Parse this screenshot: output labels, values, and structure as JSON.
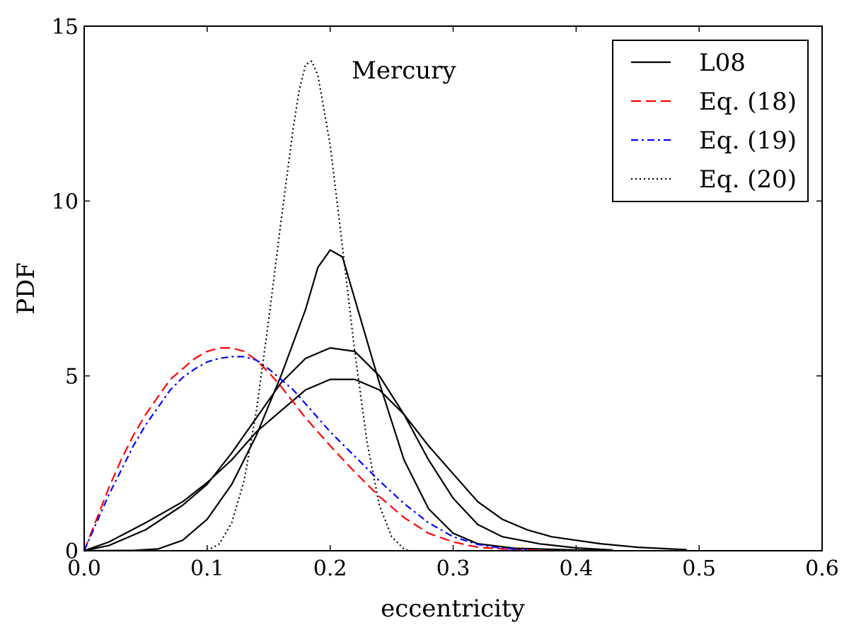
{
  "chart_data": {
    "type": "line",
    "xlabel": "eccentricity",
    "ylabel": "PDF",
    "xlim": [
      0.0,
      0.6
    ],
    "ylim": [
      0,
      15
    ],
    "x_ticks": [
      "0.0",
      "0.1",
      "0.2",
      "0.3",
      "0.4",
      "0.5",
      "0.6"
    ],
    "y_ticks": [
      "0",
      "5",
      "10",
      "15"
    ],
    "grid": false,
    "annotation": "Mercury",
    "legend_position": "top-right",
    "series": [
      {
        "name": "L08",
        "color": "#000000",
        "dash": "solid",
        "points": [
          [
            0.0,
            0.0
          ],
          [
            0.04,
            0.01
          ],
          [
            0.06,
            0.05
          ],
          [
            0.08,
            0.3
          ],
          [
            0.1,
            0.9
          ],
          [
            0.12,
            1.9
          ],
          [
            0.14,
            3.3
          ],
          [
            0.16,
            5.0
          ],
          [
            0.18,
            6.9
          ],
          [
            0.19,
            8.1
          ],
          [
            0.2,
            8.6
          ],
          [
            0.21,
            8.4
          ],
          [
            0.22,
            7.2
          ],
          [
            0.24,
            4.8
          ],
          [
            0.26,
            2.6
          ],
          [
            0.28,
            1.2
          ],
          [
            0.3,
            0.5
          ],
          [
            0.32,
            0.2
          ],
          [
            0.35,
            0.07
          ],
          [
            0.4,
            0.02
          ],
          [
            0.43,
            0.0
          ]
        ]
      },
      {
        "name": "",
        "color": "#000000",
        "dash": "solid",
        "points": [
          [
            0.0,
            0.0
          ],
          [
            0.02,
            0.15
          ],
          [
            0.05,
            0.6
          ],
          [
            0.08,
            1.3
          ],
          [
            0.1,
            1.9
          ],
          [
            0.12,
            2.8
          ],
          [
            0.14,
            3.8
          ],
          [
            0.16,
            4.8
          ],
          [
            0.18,
            5.5
          ],
          [
            0.2,
            5.8
          ],
          [
            0.22,
            5.7
          ],
          [
            0.24,
            5.0
          ],
          [
            0.26,
            3.9
          ],
          [
            0.28,
            2.6
          ],
          [
            0.3,
            1.5
          ],
          [
            0.32,
            0.75
          ],
          [
            0.34,
            0.4
          ],
          [
            0.37,
            0.2
          ],
          [
            0.4,
            0.08
          ],
          [
            0.43,
            0.02
          ]
        ]
      },
      {
        "name": "",
        "color": "#000000",
        "dash": "solid",
        "points": [
          [
            0.0,
            0.0
          ],
          [
            0.02,
            0.25
          ],
          [
            0.05,
            0.8
          ],
          [
            0.08,
            1.4
          ],
          [
            0.1,
            1.95
          ],
          [
            0.12,
            2.6
          ],
          [
            0.14,
            3.4
          ],
          [
            0.16,
            4.0
          ],
          [
            0.18,
            4.6
          ],
          [
            0.2,
            4.9
          ],
          [
            0.22,
            4.9
          ],
          [
            0.24,
            4.6
          ],
          [
            0.26,
            3.9
          ],
          [
            0.28,
            3.0
          ],
          [
            0.3,
            2.2
          ],
          [
            0.32,
            1.4
          ],
          [
            0.34,
            0.9
          ],
          [
            0.36,
            0.6
          ],
          [
            0.38,
            0.4
          ],
          [
            0.4,
            0.3
          ],
          [
            0.42,
            0.2
          ],
          [
            0.45,
            0.1
          ],
          [
            0.49,
            0.03
          ]
        ]
      },
      {
        "name": "Eq. (18)",
        "color": "#ff0000",
        "dash": "dashed",
        "points": [
          [
            0.0,
            0.0
          ],
          [
            0.01,
            0.9
          ],
          [
            0.02,
            1.8
          ],
          [
            0.03,
            2.6
          ],
          [
            0.04,
            3.3
          ],
          [
            0.05,
            3.9
          ],
          [
            0.06,
            4.4
          ],
          [
            0.07,
            4.9
          ],
          [
            0.08,
            5.2
          ],
          [
            0.09,
            5.5
          ],
          [
            0.1,
            5.7
          ],
          [
            0.11,
            5.8
          ],
          [
            0.12,
            5.8
          ],
          [
            0.13,
            5.7
          ],
          [
            0.14,
            5.45
          ],
          [
            0.15,
            5.1
          ],
          [
            0.16,
            4.7
          ],
          [
            0.17,
            4.25
          ],
          [
            0.18,
            3.8
          ],
          [
            0.2,
            3.0
          ],
          [
            0.22,
            2.25
          ],
          [
            0.24,
            1.55
          ],
          [
            0.26,
            0.95
          ],
          [
            0.28,
            0.5
          ],
          [
            0.3,
            0.25
          ],
          [
            0.32,
            0.1
          ],
          [
            0.35,
            0.03
          ],
          [
            0.38,
            0.0
          ]
        ]
      },
      {
        "name": "Eq. (19)",
        "color": "#0000ff",
        "dash": "dashdot",
        "points": [
          [
            0.0,
            0.0
          ],
          [
            0.01,
            0.8
          ],
          [
            0.02,
            1.6
          ],
          [
            0.03,
            2.3
          ],
          [
            0.04,
            3.0
          ],
          [
            0.05,
            3.6
          ],
          [
            0.06,
            4.1
          ],
          [
            0.07,
            4.6
          ],
          [
            0.08,
            4.95
          ],
          [
            0.09,
            5.2
          ],
          [
            0.1,
            5.4
          ],
          [
            0.11,
            5.5
          ],
          [
            0.12,
            5.55
          ],
          [
            0.13,
            5.55
          ],
          [
            0.14,
            5.45
          ],
          [
            0.15,
            5.2
          ],
          [
            0.16,
            4.9
          ],
          [
            0.17,
            4.6
          ],
          [
            0.18,
            4.2
          ],
          [
            0.2,
            3.4
          ],
          [
            0.22,
            2.7
          ],
          [
            0.24,
            2.0
          ],
          [
            0.26,
            1.35
          ],
          [
            0.28,
            0.8
          ],
          [
            0.3,
            0.4
          ],
          [
            0.32,
            0.18
          ],
          [
            0.34,
            0.07
          ],
          [
            0.36,
            0.02
          ]
        ]
      },
      {
        "name": "Eq. (20)",
        "color": "#000000",
        "dash": "dotted",
        "points": [
          [
            0.1,
            0.0
          ],
          [
            0.11,
            0.2
          ],
          [
            0.12,
            0.8
          ],
          [
            0.13,
            2.0
          ],
          [
            0.14,
            4.0
          ],
          [
            0.15,
            6.6
          ],
          [
            0.16,
            9.4
          ],
          [
            0.17,
            12.1
          ],
          [
            0.175,
            13.2
          ],
          [
            0.18,
            13.9
          ],
          [
            0.185,
            14.0
          ],
          [
            0.19,
            13.6
          ],
          [
            0.2,
            11.6
          ],
          [
            0.21,
            8.7
          ],
          [
            0.22,
            5.7
          ],
          [
            0.23,
            3.1
          ],
          [
            0.24,
            1.3
          ],
          [
            0.25,
            0.4
          ],
          [
            0.26,
            0.05
          ],
          [
            0.265,
            0.0
          ]
        ]
      }
    ]
  },
  "legend": {
    "entries": [
      {
        "label": "L08",
        "color": "#000000",
        "dash": "solid"
      },
      {
        "label": "Eq. (18)",
        "color": "#ff0000",
        "dash": "dashed"
      },
      {
        "label": "Eq. (19)",
        "color": "#0000ff",
        "dash": "dashdot"
      },
      {
        "label": "Eq. (20)",
        "color": "#000000",
        "dash": "dotted"
      }
    ]
  }
}
